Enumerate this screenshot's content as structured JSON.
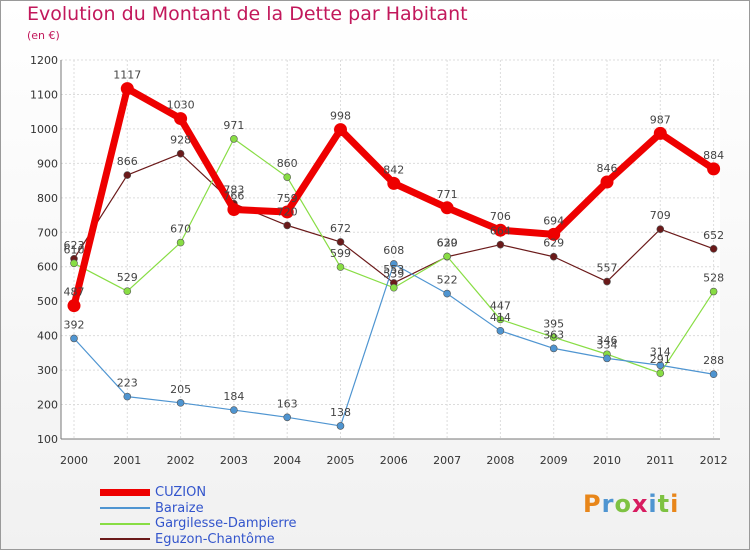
{
  "chart_data": {
    "type": "line",
    "title": "Evolution du Montant de la Dette par Habitant",
    "subtitle": "(en €)",
    "categories": [
      "2000",
      "2001",
      "2002",
      "2003",
      "2004",
      "2005",
      "2006",
      "2007",
      "2008",
      "2009",
      "2010",
      "2011",
      "2012"
    ],
    "ylim": [
      100,
      1200
    ],
    "yticks": [
      "100",
      "200",
      "300",
      "400",
      "500",
      "600",
      "700",
      "800",
      "900",
      "1000",
      "1100",
      "1200"
    ],
    "grid": true,
    "legend_position": "bottom-left",
    "series": [
      {
        "name": "CUZION",
        "color": "#ee0000",
        "values": [
          487,
          1117,
          1030,
          766,
          759,
          998,
          842,
          771,
          706,
          694,
          846,
          987,
          884
        ],
        "labels": [
          "487",
          "1117",
          "1030",
          "766",
          "759",
          "998",
          "842",
          "771",
          "706",
          "694",
          "846",
          "987",
          "884"
        ]
      },
      {
        "name": "Baraize",
        "color": "#4f95d1",
        "values": [
          392,
          223,
          205,
          184,
          163,
          138,
          608,
          522,
          414,
          363,
          334,
          314,
          288
        ],
        "labels": [
          "392",
          "223",
          "205",
          "184",
          "163",
          "138",
          "608",
          "522",
          "414",
          "363",
          "334",
          "314",
          "288"
        ]
      },
      {
        "name": "Gargilesse-Dampierre",
        "color": "#88dd44",
        "values": [
          610,
          529,
          670,
          971,
          860,
          599,
          539,
          630,
          447,
          395,
          346,
          291,
          528
        ],
        "labels": [
          "610",
          "529",
          "670",
          "971",
          "860",
          "599",
          "539",
          "630",
          "447",
          "395",
          "346",
          "291",
          "528"
        ]
      },
      {
        "name": "Eguzon-Chantôme",
        "color": "#6b1a1a",
        "values": [
          623,
          866,
          928,
          783,
          720,
          672,
          553,
          629,
          664,
          629,
          557,
          709,
          652
        ],
        "labels": [
          "623",
          "866",
          "928",
          "783",
          "720",
          "672",
          "553",
          "629",
          "664",
          "629",
          "557",
          "709",
          "652"
        ]
      }
    ]
  },
  "brand": {
    "text": "Proxiti",
    "letter_colors": [
      "#e8861a",
      "#4f95d1",
      "#7ec242",
      "#d81b60",
      "#4f95d1",
      "#7ec242",
      "#e8861a"
    ]
  }
}
